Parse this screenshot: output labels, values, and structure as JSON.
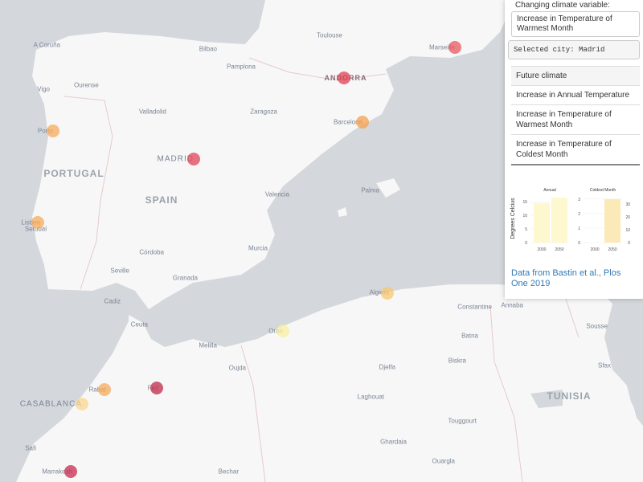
{
  "map": {
    "colors": {
      "sea": "#d4d7db",
      "land": "#f7f7f7",
      "border": "#e8c9cc"
    },
    "countries": [
      {
        "name": "PORTUGAL"
      },
      {
        "name": "SPAIN"
      },
      {
        "name": "ANDORRA"
      },
      {
        "name": "TUNISIA"
      }
    ],
    "cities": [
      "A Coruña",
      "Bilbao",
      "Toulouse",
      "Pamplona",
      "Ourense",
      "Vigo",
      "Valladolid",
      "Zaragoza",
      "Porto",
      "MADRID",
      "Barcelona",
      "Marseille",
      "Valencia",
      "Palma",
      "Lisbon",
      "Setubal",
      "Murcia",
      "Córdoba",
      "Seville",
      "Granada",
      "Cadiz",
      "Ceuta",
      "Melilla",
      "Oran",
      "Oujda",
      "Algiers",
      "Annaba",
      "Tunis",
      "Constantine",
      "Batna",
      "Sousse",
      "Biskra",
      "Djelfa",
      "Sfax",
      "Rabat",
      "Fez",
      "CASABLANCA",
      "Laghouat",
      "TUNISIA",
      "Touggourt",
      "Ghardaia",
      "Safi",
      "Marrakesh",
      "Bechar",
      "Ouargla"
    ],
    "markers": [
      {
        "city": "Marseille",
        "color": "#e8585e"
      },
      {
        "city": "Andorra",
        "color": "#e04050"
      },
      {
        "city": "Barcelona",
        "color": "#f5a050"
      },
      {
        "city": "Porto",
        "color": "#f7a95a"
      },
      {
        "city": "Madrid",
        "color": "#e04558"
      },
      {
        "city": "Lisbon",
        "color": "#f7a95a"
      },
      {
        "city": "Algiers",
        "color": "#f8c870"
      },
      {
        "city": "Tunis",
        "color": "#f0744a"
      },
      {
        "city": "Oran",
        "color": "#faf0a0"
      },
      {
        "city": "Rabat",
        "color": "#f7a95a"
      },
      {
        "city": "Fez",
        "color": "#c02848"
      },
      {
        "city": "Casablanca",
        "color": "#fad890"
      },
      {
        "city": "Marrakesh",
        "color": "#c82a50"
      }
    ]
  },
  "panel": {
    "variable_label": "Changing climate variable:",
    "variable_value": "Increase in Temperature of Warmest Month",
    "selected_city": "Selected city: Madrid",
    "table": [
      "Future climate",
      "Increase in Annual Temperature",
      "Increase in Temperature of Warmest Month",
      "Increase in Temperature of Coldest Month"
    ],
    "link": "Data from Bastin et al., Plos One 2019"
  },
  "chart_data": [
    {
      "type": "bar",
      "title": "Annual",
      "ylabel": "Degrees Celcius",
      "categories": [
        "2000",
        "2050"
      ],
      "values": [
        14.5,
        16.5
      ],
      "ylim": [
        0,
        16.5
      ],
      "yticks": [
        0,
        5,
        10,
        15
      ],
      "color": "#fdf8d0"
    },
    {
      "type": "bar",
      "title": "Coldest Month",
      "categories": [
        "2000",
        "2050"
      ],
      "values": [
        0,
        3
      ],
      "ylim": [
        0,
        3.1
      ],
      "yticks": [
        0,
        1,
        2,
        3
      ],
      "color": "#fbeab8"
    },
    {
      "type": "bar",
      "title": "",
      "categories": [],
      "values": [],
      "ylim": [
        0,
        35
      ],
      "yticks": [
        0,
        10,
        20,
        30
      ]
    }
  ]
}
